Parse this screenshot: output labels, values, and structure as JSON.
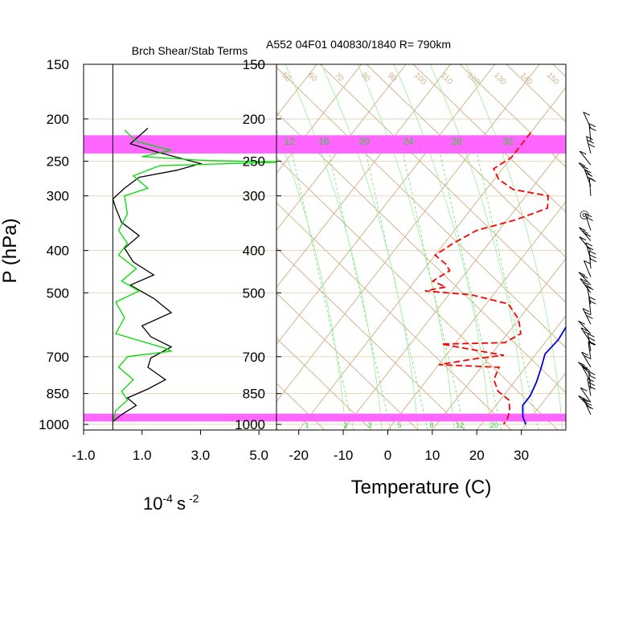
{
  "chart_data": [
    {
      "type": "line",
      "title": "Brch Shear/Stab Terms",
      "xlabel_base": "10",
      "xlabel_exp": "-4",
      "xlabel_unit": "s",
      "xlabel_unit_exp": "-2",
      "ylabel": "P (hPa)",
      "xlim": [
        -1.0,
        5.6
      ],
      "x_ticks": [
        "-1.0",
        "1.0",
        "3.0",
        "5.0"
      ],
      "x_tick_values": [
        -1,
        1,
        3,
        5
      ],
      "pressure_ticks": [
        150,
        200,
        250,
        300,
        400,
        500,
        700,
        850,
        1000
      ],
      "series": [
        {
          "color": "#000000",
          "points": [
            [
              1.2,
              210
            ],
            [
              0.6,
              228
            ],
            [
              1.5,
              238
            ],
            [
              3.0,
              253
            ],
            [
              2.2,
              262
            ],
            [
              0.9,
              272
            ],
            [
              0.4,
              288
            ],
            [
              0.0,
              305
            ],
            [
              0.1,
              320
            ],
            [
              0.3,
              345
            ],
            [
              0.9,
              370
            ],
            [
              0.4,
              395
            ],
            [
              0.7,
              425
            ],
            [
              1.4,
              455
            ],
            [
              0.6,
              480
            ],
            [
              1.4,
              515
            ],
            [
              2.0,
              555
            ],
            [
              1.0,
              595
            ],
            [
              1.3,
              630
            ],
            [
              2.0,
              665
            ],
            [
              1.3,
              705
            ],
            [
              1.2,
              740
            ],
            [
              1.8,
              790
            ],
            [
              1.2,
              830
            ],
            [
              0.5,
              870
            ],
            [
              0.8,
              905
            ],
            [
              0.3,
              950
            ],
            [
              0.0,
              985
            ]
          ]
        },
        {
          "color": "#00dd00",
          "points": [
            [
              0.4,
              212
            ],
            [
              0.8,
              225
            ],
            [
              2.0,
              236
            ],
            [
              1.0,
              244
            ],
            [
              3.2,
              249
            ],
            [
              5.8,
              251
            ],
            [
              1.6,
              256
            ],
            [
              0.7,
              270
            ],
            [
              1.2,
              288
            ],
            [
              0.4,
              300
            ],
            [
              0.5,
              330
            ],
            [
              0.2,
              360
            ],
            [
              0.5,
              385
            ],
            [
              0.2,
              410
            ],
            [
              0.8,
              440
            ],
            [
              0.3,
              470
            ],
            [
              0.9,
              495
            ],
            [
              0.1,
              525
            ],
            [
              0.4,
              570
            ],
            [
              0.1,
              620
            ],
            [
              1.8,
              670
            ],
            [
              2.0,
              680
            ],
            [
              0.5,
              700
            ],
            [
              0.2,
              740
            ],
            [
              0.7,
              790
            ],
            [
              0.3,
              840
            ],
            [
              0.5,
              880
            ],
            [
              0.1,
              930
            ],
            [
              0.0,
              990
            ]
          ]
        }
      ]
    },
    {
      "type": "line",
      "title": "A552 04F01 040830/1840 R= 790km",
      "xlabel": "Temperature (C)",
      "xlim": [
        -25,
        40
      ],
      "x_ticks": [
        "-20",
        "-10",
        "0",
        "10",
        "20",
        "30"
      ],
      "x_tick_values": [
        -20,
        -10,
        0,
        10,
        20,
        30
      ],
      "pressure_ticks": [
        150,
        200,
        250,
        300,
        400,
        500,
        700,
        850,
        1000
      ],
      "highlight_bands_hpa": [
        [
          218,
          240
        ],
        [
          945,
          985
        ]
      ],
      "highlight_color": "#ff66ff",
      "isotherm_color": "#d2b48c",
      "mixing_ratio_labels": [
        "12",
        "16",
        "20",
        "24",
        "28",
        "32"
      ],
      "mixing_ratio_values": [
        12,
        16,
        20,
        24,
        28,
        32
      ],
      "mixing_ratio_bottom_labels": [
        "1",
        "2",
        "3",
        "5",
        "8",
        "12",
        "20"
      ],
      "mixing_ratio_bottom_values": [
        1,
        2,
        3,
        5,
        8,
        12,
        20
      ],
      "dry_adiabat_labels": [
        "50",
        "60",
        "70",
        "80",
        "90",
        "100",
        "110",
        "120",
        "130",
        "140",
        "150"
      ],
      "series": [
        {
          "color": "#0000dd",
          "style": "solid",
          "points": [
            [
              1.5,
              205
            ],
            [
              3.5,
              225
            ],
            [
              3.0,
              250
            ],
            [
              5.0,
              270
            ],
            [
              8.0,
              300
            ],
            [
              12.0,
              345
            ],
            [
              15.0,
              390
            ],
            [
              17.0,
              440
            ],
            [
              20.0,
              500
            ],
            [
              21.5,
              560
            ],
            [
              22.5,
              640
            ],
            [
              22.0,
              690
            ],
            [
              23.5,
              740
            ],
            [
              25.0,
              800
            ],
            [
              26.0,
              860
            ],
            [
              26.0,
              905
            ],
            [
              28.0,
              960
            ],
            [
              30.0,
              1000
            ]
          ]
        },
        {
          "color": "#ff0000",
          "style": "dashed",
          "points": [
            [
              -20,
              215
            ],
            [
              -20,
              245
            ],
            [
              -22,
              260
            ],
            [
              -19,
              275
            ],
            [
              -14,
              290
            ],
            [
              -5,
              300
            ],
            [
              -3,
              320
            ],
            [
              -8,
              340
            ],
            [
              -15,
              360
            ],
            [
              -18,
              385
            ],
            [
              -20,
              410
            ],
            [
              -16,
              430
            ],
            [
              -14,
              445
            ],
            [
              -16,
              470
            ],
            [
              -12,
              485
            ],
            [
              -16,
              495
            ],
            [
              -5,
              505
            ],
            [
              5,
              530
            ],
            [
              10,
              575
            ],
            [
              13,
              620
            ],
            [
              11,
              650
            ],
            [
              -3,
              655
            ],
            [
              13,
              695
            ],
            [
              8,
              705
            ],
            [
              0,
              730
            ],
            [
              14,
              740
            ],
            [
              15,
              790
            ],
            [
              18,
              840
            ],
            [
              22,
              880
            ],
            [
              24,
              930
            ],
            [
              25,
              975
            ],
            [
              25,
              1000
            ]
          ]
        }
      ]
    },
    {
      "type": "wind_barbs",
      "calm_symbol": "◎",
      "calm_level_hpa": 330,
      "levels_hpa": [
        210,
        225,
        240,
        255,
        270,
        285,
        300,
        360,
        380,
        400,
        420,
        440,
        460,
        480,
        500,
        530,
        560,
        590,
        620,
        650,
        680,
        710,
        740,
        770,
        800,
        830,
        860,
        890,
        920,
        950
      ]
    }
  ]
}
